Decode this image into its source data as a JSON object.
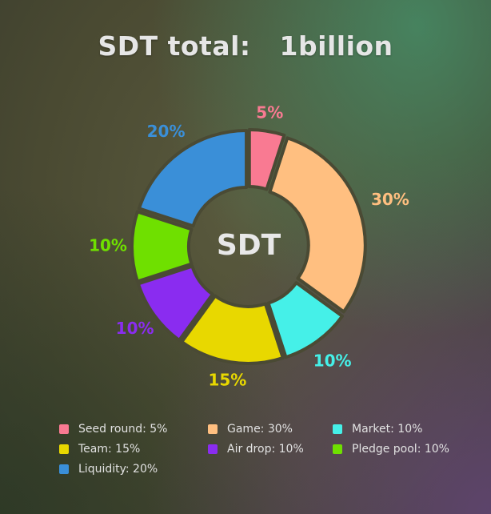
{
  "title": "SDT total:   1billion",
  "center_label": "SDT",
  "chart_data": {
    "type": "pie",
    "title": "SDT total:   1billion",
    "center_label": "SDT",
    "categories": [
      "Seed round",
      "Game",
      "Market",
      "Team",
      "Air drop",
      "Pledge pool",
      "Liquidity"
    ],
    "values": [
      5,
      30,
      10,
      15,
      10,
      10,
      20
    ],
    "value_labels": [
      "5%",
      "30%",
      "10%",
      "15%",
      "10%",
      "10%",
      "20%"
    ],
    "colors": [
      "#f97a92",
      "#ffbf80",
      "#45f0e8",
      "#e8d800",
      "#8a2cf0",
      "#6fe000",
      "#3a8fd8"
    ],
    "legend": [
      {
        "label": "Seed round: 5%",
        "color": "#f97a92"
      },
      {
        "label": "Game: 30%",
        "color": "#ffbf80"
      },
      {
        "label": "Market: 10%",
        "color": "#45f0e8"
      },
      {
        "label": "Team: 15%",
        "color": "#e8d800"
      },
      {
        "label": "Air drop: 10%",
        "color": "#8a2cf0"
      },
      {
        "label": "Pledge pool: 10%",
        "color": "#6fe000"
      },
      {
        "label": "Liquidity: 20%",
        "color": "#3a8fd8"
      }
    ],
    "legend_position": "bottom",
    "grid": false
  }
}
